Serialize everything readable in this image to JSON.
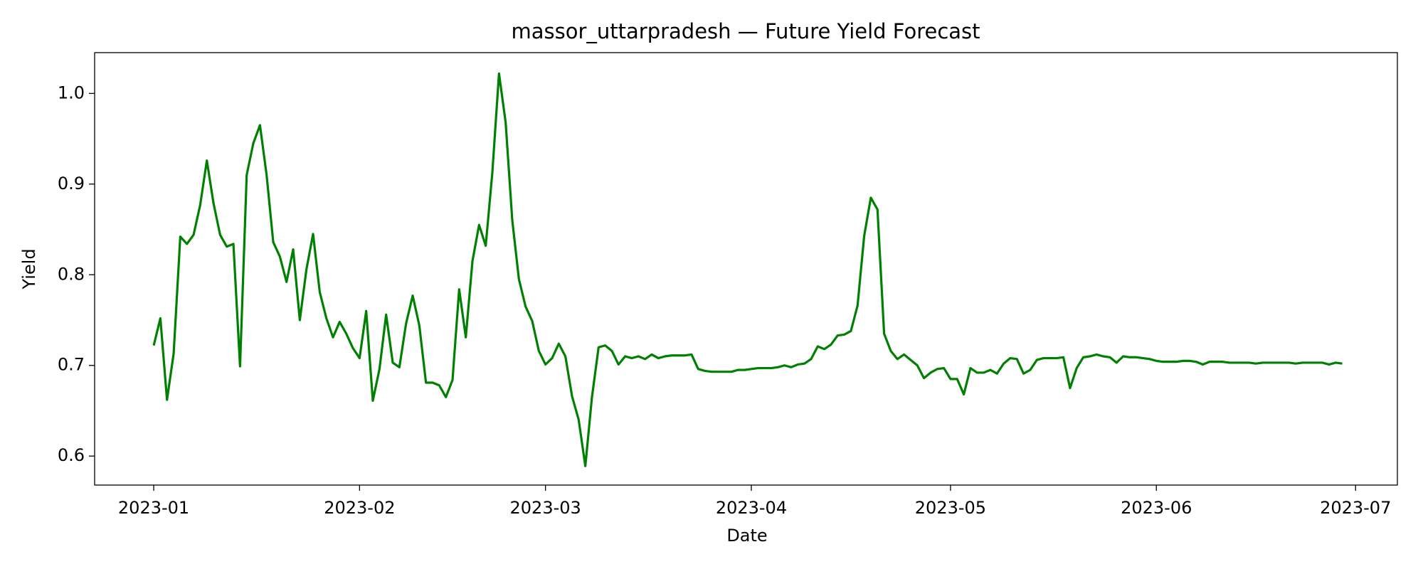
{
  "chart_data": {
    "type": "line",
    "title": "massor_uttarpradesh — Future Yield Forecast",
    "x_label": "Date",
    "y_label": "Yield",
    "series": [
      {
        "color": "#008000",
        "values": [
          0.722,
          0.752,
          0.662,
          0.713,
          0.842,
          0.834,
          0.844,
          0.877,
          0.926,
          0.879,
          0.844,
          0.831,
          0.834,
          0.699,
          0.91,
          0.945,
          0.965,
          0.91,
          0.836,
          0.82,
          0.792,
          0.828,
          0.75,
          0.806,
          0.845,
          0.781,
          0.752,
          0.731,
          0.748,
          0.735,
          0.719,
          0.708,
          0.76,
          0.661,
          0.696,
          0.756,
          0.703,
          0.698,
          0.746,
          0.777,
          0.744,
          0.681,
          0.681,
          0.678,
          0.665,
          0.684,
          0.784,
          0.731,
          0.815,
          0.855,
          0.832,
          0.913,
          1.022,
          0.968,
          0.86,
          0.795,
          0.765,
          0.749,
          0.716,
          0.701,
          0.708,
          0.724,
          0.71,
          0.666,
          0.64,
          0.589,
          0.665,
          0.72,
          0.722,
          0.716,
          0.701,
          0.71,
          0.708,
          0.71,
          0.707,
          0.712,
          0.708,
          0.71,
          0.711,
          0.711,
          0.711,
          0.712,
          0.696,
          0.694,
          0.693,
          0.693,
          0.693,
          0.693,
          0.695,
          0.695,
          0.696,
          0.697,
          0.697,
          0.697,
          0.698,
          0.7,
          0.698,
          0.701,
          0.702,
          0.707,
          0.721,
          0.718,
          0.723,
          0.733,
          0.734,
          0.738,
          0.766,
          0.843,
          0.885,
          0.872,
          0.735,
          0.716,
          0.707,
          0.712,
          0.706,
          0.7,
          0.686,
          0.692,
          0.696,
          0.697,
          0.685,
          0.685,
          0.668,
          0.697,
          0.692,
          0.692,
          0.695,
          0.691,
          0.702,
          0.708,
          0.707,
          0.691,
          0.695,
          0.706,
          0.708,
          0.708,
          0.708,
          0.709,
          0.675,
          0.697,
          0.709,
          0.71,
          0.712,
          0.71,
          0.709,
          0.703,
          0.71,
          0.709,
          0.709,
          0.708,
          0.707,
          0.705,
          0.704,
          0.704,
          0.704,
          0.705,
          0.705,
          0.704,
          0.701,
          0.704,
          0.704,
          0.704,
          0.703,
          0.703,
          0.703,
          0.703,
          0.702,
          0.703,
          0.703,
          0.703,
          0.703,
          0.703,
          0.702,
          0.703,
          0.703,
          0.703,
          0.703,
          0.701,
          0.703,
          0.702
        ]
      }
    ],
    "xlim": [
      -8.9,
      187.3
    ],
    "ylim": [
      0.568,
      1.045
    ],
    "xticks": [
      {
        "value": 0,
        "label": "2023-01"
      },
      {
        "value": 31,
        "label": "2023-02"
      },
      {
        "value": 59,
        "label": "2023-03"
      },
      {
        "value": 90,
        "label": "2023-04"
      },
      {
        "value": 120,
        "label": "2023-05"
      },
      {
        "value": 151,
        "label": "2023-06"
      },
      {
        "value": 181,
        "label": "2023-07"
      }
    ],
    "yticks": [
      0.6,
      0.7,
      0.8,
      0.9,
      {
        "value": 1,
        "label": "1.0"
      }
    ],
    "grid": false
  }
}
